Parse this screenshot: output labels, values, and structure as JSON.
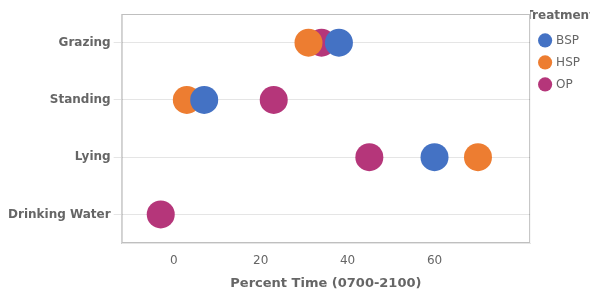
{
  "chart_data": {
    "type": "scatter",
    "orientation": "horizontal",
    "categories": [
      "Grazing",
      "Standing",
      "Lying",
      "Drinking Water"
    ],
    "series": [
      {
        "name": "BSP",
        "color": "#4472C4",
        "values": [
          38,
          7,
          60,
          null
        ]
      },
      {
        "name": "HSP",
        "color": "#ED7D31",
        "values": [
          31,
          3,
          70,
          null
        ]
      },
      {
        "name": "OP",
        "color": "#B5367A",
        "values": [
          34,
          23,
          45,
          -3
        ]
      }
    ],
    "xlabel": "Percent Time (0700-2100)",
    "legend_title": "Treatment",
    "xlim": [
      -12,
      82
    ],
    "xticks": [
      0,
      20,
      40,
      60
    ],
    "grid": "y",
    "legend": "right",
    "marker": "circle"
  }
}
